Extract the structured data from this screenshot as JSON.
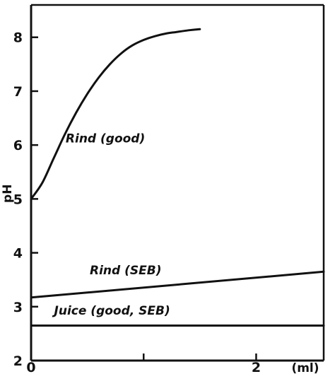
{
  "chart_data": {
    "type": "line",
    "title": "",
    "xlabel": "",
    "ylabel": "pH",
    "x_unit": "(ml)",
    "xlim": [
      0,
      2.6
    ],
    "ylim": [
      2,
      8.6
    ],
    "x_ticks": [
      0,
      1,
      2
    ],
    "x_tick_labels": [
      "0",
      "",
      "2"
    ],
    "y_ticks": [
      2,
      3,
      4,
      5,
      6,
      7,
      8
    ],
    "y_tick_labels": [
      "2",
      "3",
      "4",
      "5",
      "6",
      "7",
      "8"
    ],
    "grid": false,
    "legend": "none",
    "series": [
      {
        "name": "Rind (good)",
        "x": [
          0,
          0.1,
          0.2,
          0.3,
          0.4,
          0.5,
          0.6,
          0.7,
          0.8,
          0.9,
          1.0,
          1.1,
          1.2,
          1.3,
          1.4,
          1.5
        ],
        "y": [
          5.0,
          5.3,
          5.75,
          6.2,
          6.6,
          6.95,
          7.25,
          7.5,
          7.7,
          7.85,
          7.95,
          8.02,
          8.07,
          8.1,
          8.13,
          8.15
        ]
      },
      {
        "name": "Rind (SEB)",
        "x": [
          0,
          2.6
        ],
        "y": [
          3.17,
          3.65
        ]
      },
      {
        "name": "Juice (good, SEB)",
        "x": [
          0,
          2.6
        ],
        "y": [
          2.65,
          2.65
        ]
      }
    ],
    "annotations": [
      {
        "text": "Rind (good)",
        "x": 0.66,
        "y": 6.05
      },
      {
        "text": "Rind (SEB)",
        "x": 0.84,
        "y": 3.6
      },
      {
        "text": "Juice (good, SEB)",
        "x": 0.72,
        "y": 2.85
      }
    ]
  }
}
